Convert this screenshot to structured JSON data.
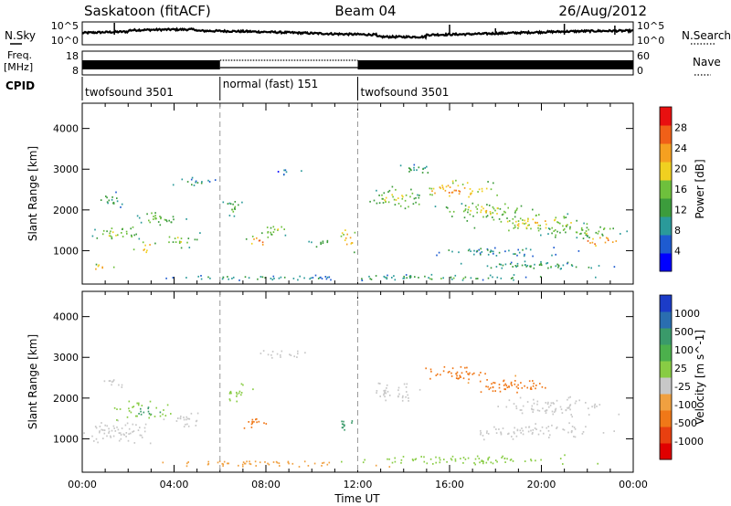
{
  "header": {
    "station": "Saskatoon (fitACF)",
    "beam": "Beam 04",
    "date": "26/Aug/2012"
  },
  "side_labels": {
    "nsky": "N.Sky",
    "freq": "Freq.",
    "freq_unit": "[MHz]",
    "cpid": "CPID",
    "nsearch": "N.Search",
    "nave": "Nave"
  },
  "noise_panel": {
    "left_ticks": [
      "10^5",
      "10^0"
    ],
    "right_ticks": [
      "10^5",
      "10^0"
    ]
  },
  "freq_panel": {
    "left_ticks": [
      "18",
      "8"
    ],
    "right_ticks": [
      "60",
      "0"
    ]
  },
  "cpid_segments": [
    {
      "label": "twofsound 3501",
      "start_h": 0,
      "end_h": 6
    },
    {
      "label": "normal (fast) 151",
      "start_h": 6,
      "end_h": 12
    },
    {
      "label": "twofsound 3501",
      "start_h": 12,
      "end_h": 24
    }
  ],
  "x_axis": {
    "label": "Time UT",
    "ticks": [
      "00:00",
      "04:00",
      "08:00",
      "12:00",
      "16:00",
      "20:00",
      "00:00"
    ]
  },
  "power_panel": {
    "ylabel": "Slant Range [km]",
    "yticks": [
      "4000",
      "3000",
      "2000",
      "1000"
    ],
    "colorbar_label": "Power [dB]",
    "colorbar_ticks": [
      "28",
      "24",
      "20",
      "16",
      "12",
      "8",
      "4"
    ],
    "colors": [
      "#0000ff",
      "#1e5bd0",
      "#2a9a9a",
      "#3c9c3c",
      "#6ec03c",
      "#f0d020",
      "#f5a020",
      "#f06018",
      "#e81010"
    ]
  },
  "velocity_panel": {
    "ylabel": "Slant Range [km]",
    "yticks": [
      "4000",
      "3000",
      "2000",
      "1000"
    ],
    "colorbar_label": "Velocity [m s^-1]",
    "colorbar_ticks": [
      "1000",
      "500",
      "100",
      "25",
      "-25",
      "-100",
      "-500",
      "-1000"
    ],
    "colors": [
      "#1c3cc8",
      "#2a6eb0",
      "#3a9a6a",
      "#4cb04c",
      "#88cc44",
      "#c8c8c8",
      "#f0a040",
      "#f07818",
      "#e84010",
      "#e00000"
    ]
  },
  "chart_data": [
    {
      "type": "heatmap",
      "title": "Power",
      "xlabel": "Time UT",
      "ylabel": "Slant Range [km]",
      "x_range_h": [
        0,
        24
      ],
      "ylim_km": [
        180,
        4620
      ],
      "colorbar_range_db": [
        0,
        30
      ],
      "blobs": [
        {
          "t": 0.8,
          "r": 600,
          "dt": 0.8,
          "dr": 120,
          "v": 22
        },
        {
          "t": 1.5,
          "r": 1450,
          "dt": 1.6,
          "dr": 260,
          "v": 18
        },
        {
          "t": 2.7,
          "r": 1100,
          "dt": 0.7,
          "dr": 180,
          "v": 24
        },
        {
          "t": 3.2,
          "r": 1800,
          "dt": 1.5,
          "dr": 260,
          "v": 16
        },
        {
          "t": 1.2,
          "r": 2300,
          "dt": 0.9,
          "dr": 250,
          "v": 12
        },
        {
          "t": 4.3,
          "r": 1300,
          "dt": 1.0,
          "dr": 250,
          "v": 18
        },
        {
          "t": 4.8,
          "r": 2700,
          "dt": 1.2,
          "dr": 180,
          "v": 10
        },
        {
          "t": 6.6,
          "r": 2100,
          "dt": 0.7,
          "dr": 320,
          "v": 14
        },
        {
          "t": 7.7,
          "r": 1250,
          "dt": 0.8,
          "dr": 180,
          "v": 26
        },
        {
          "t": 8.3,
          "r": 1500,
          "dt": 1.0,
          "dr": 220,
          "v": 18
        },
        {
          "t": 9.0,
          "r": 2950,
          "dt": 0.8,
          "dr": 130,
          "v": 8
        },
        {
          "t": 10.3,
          "r": 1200,
          "dt": 0.8,
          "dr": 160,
          "v": 14
        },
        {
          "t": 11.6,
          "r": 1300,
          "dt": 0.5,
          "dr": 400,
          "v": 24
        },
        {
          "t": 13.6,
          "r": 2300,
          "dt": 1.6,
          "dr": 400,
          "v": 18
        },
        {
          "t": 14.5,
          "r": 3000,
          "dt": 1.2,
          "dr": 200,
          "v": 12
        },
        {
          "t": 16.2,
          "r": 2500,
          "dt": 2.2,
          "dr": 300,
          "v": 24
        },
        {
          "t": 17.5,
          "r": 2000,
          "dt": 3.0,
          "dr": 280,
          "v": 18
        },
        {
          "t": 19.6,
          "r": 1700,
          "dt": 3.2,
          "dr": 300,
          "v": 20
        },
        {
          "t": 21.8,
          "r": 1500,
          "dt": 2.5,
          "dr": 260,
          "v": 16
        },
        {
          "t": 22.6,
          "r": 1250,
          "dt": 1.2,
          "dr": 150,
          "v": 28
        },
        {
          "t": 18.0,
          "r": 1000,
          "dt": 4.0,
          "dr": 160,
          "v": 10
        },
        {
          "t": 20.0,
          "r": 650,
          "dt": 5.0,
          "dr": 150,
          "v": 12
        },
        {
          "t": 8.0,
          "r": 350,
          "dt": 7.0,
          "dr": 90,
          "v": 10
        },
        {
          "t": 16.0,
          "r": 350,
          "dt": 8.0,
          "dr": 100,
          "v": 12
        }
      ]
    },
    {
      "type": "heatmap",
      "title": "Velocity",
      "xlabel": "Time UT",
      "ylabel": "Slant Range [km]",
      "x_range_h": [
        0,
        24
      ],
      "ylim_km": [
        180,
        4620
      ],
      "colorbar_ticks_ms": [
        1000,
        500,
        100,
        25,
        -25,
        -100,
        -500,
        -1000
      ],
      "blobs": [
        {
          "t": 1.5,
          "r": 1200,
          "dt": 2.2,
          "dr": 400,
          "v": 0
        },
        {
          "t": 2.8,
          "r": 1700,
          "dt": 1.8,
          "dr": 300,
          "v": 120
        },
        {
          "t": 1.3,
          "r": 2400,
          "dt": 0.8,
          "dr": 200,
          "v": 0
        },
        {
          "t": 4.5,
          "r": 1500,
          "dt": 1.0,
          "dr": 300,
          "v": 0
        },
        {
          "t": 7.5,
          "r": 1400,
          "dt": 0.8,
          "dr": 250,
          "v": -300
        },
        {
          "t": 6.8,
          "r": 2200,
          "dt": 0.8,
          "dr": 300,
          "v": 80
        },
        {
          "t": 8.8,
          "r": 3100,
          "dt": 1.6,
          "dr": 150,
          "v": 0
        },
        {
          "t": 11.5,
          "r": 1400,
          "dt": 0.5,
          "dr": 300,
          "v": 200
        },
        {
          "t": 13.5,
          "r": 2200,
          "dt": 1.4,
          "dr": 350,
          "v": 0
        },
        {
          "t": 16.5,
          "r": 2600,
          "dt": 2.2,
          "dr": 250,
          "v": -400
        },
        {
          "t": 18.5,
          "r": 2300,
          "dt": 2.5,
          "dr": 300,
          "v": -150
        },
        {
          "t": 20.5,
          "r": 1800,
          "dt": 3.5,
          "dr": 300,
          "v": 0
        },
        {
          "t": 20.0,
          "r": 1200,
          "dt": 4.0,
          "dr": 250,
          "v": 0
        },
        {
          "t": 8.0,
          "r": 400,
          "dt": 6.0,
          "dr": 120,
          "v": -60
        },
        {
          "t": 17.0,
          "r": 500,
          "dt": 7.0,
          "dr": 150,
          "v": 60
        }
      ]
    }
  ]
}
